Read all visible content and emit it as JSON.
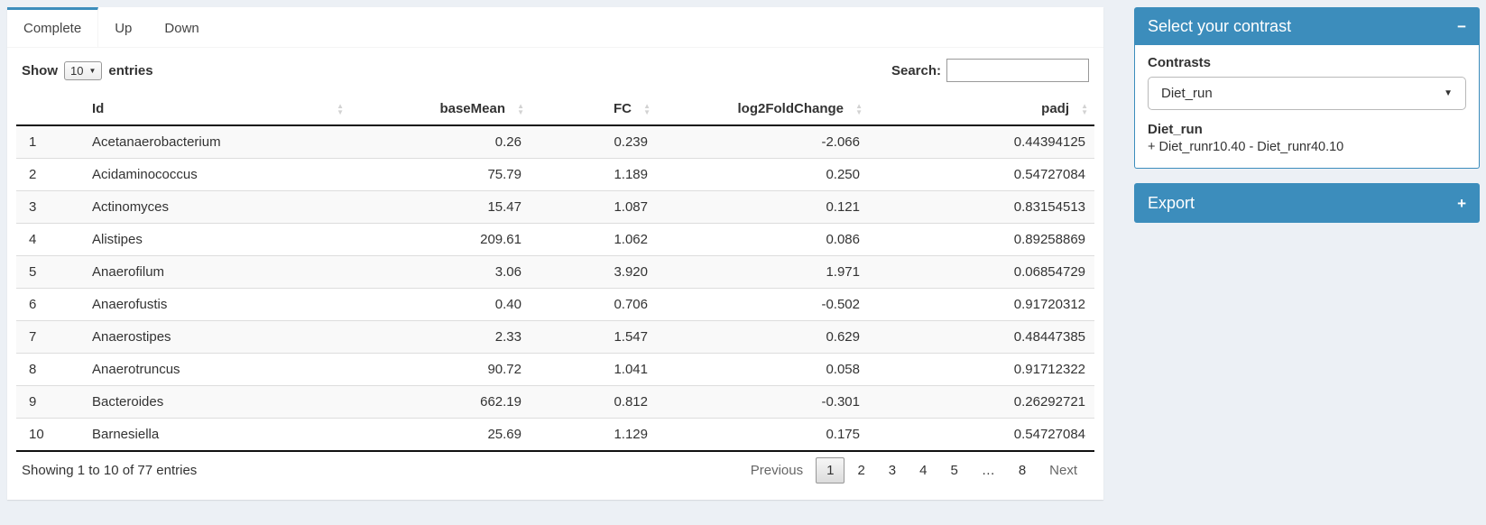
{
  "colors": {
    "accent": "#3c8dbc",
    "page_bg": "#ecf0f5",
    "stripe": "#f9f9f9"
  },
  "icons": {
    "sort_up": "▲",
    "sort_down": "▼",
    "select_caret": "▼",
    "collapse_minus": "−",
    "expand_plus": "+"
  },
  "tabs": [
    {
      "label": "Complete",
      "active": true
    },
    {
      "label": "Up",
      "active": false
    },
    {
      "label": "Down",
      "active": false
    }
  ],
  "controls": {
    "show_label": "Show",
    "page_length": "10",
    "entries_label": "entries",
    "search_label": "Search:",
    "search_value": ""
  },
  "table": {
    "columns": [
      "Id",
      "baseMean",
      "FC",
      "log2FoldChange",
      "padj"
    ],
    "rows": [
      {
        "index": "1",
        "id": "Acetanaerobacterium",
        "baseMean": "0.26",
        "fc": "0.239",
        "log2fc": "-2.066",
        "padj": "0.44394125"
      },
      {
        "index": "2",
        "id": "Acidaminococcus",
        "baseMean": "75.79",
        "fc": "1.189",
        "log2fc": "0.250",
        "padj": "0.54727084"
      },
      {
        "index": "3",
        "id": "Actinomyces",
        "baseMean": "15.47",
        "fc": "1.087",
        "log2fc": "0.121",
        "padj": "0.83154513"
      },
      {
        "index": "4",
        "id": "Alistipes",
        "baseMean": "209.61",
        "fc": "1.062",
        "log2fc": "0.086",
        "padj": "0.89258869"
      },
      {
        "index": "5",
        "id": "Anaerofilum",
        "baseMean": "3.06",
        "fc": "3.920",
        "log2fc": "1.971",
        "padj": "0.06854729"
      },
      {
        "index": "6",
        "id": "Anaerofustis",
        "baseMean": "0.40",
        "fc": "0.706",
        "log2fc": "-0.502",
        "padj": "0.91720312"
      },
      {
        "index": "7",
        "id": "Anaerostipes",
        "baseMean": "2.33",
        "fc": "1.547",
        "log2fc": "0.629",
        "padj": "0.48447385"
      },
      {
        "index": "8",
        "id": "Anaerotruncus",
        "baseMean": "90.72",
        "fc": "1.041",
        "log2fc": "0.058",
        "padj": "0.91712322"
      },
      {
        "index": "9",
        "id": "Bacteroides",
        "baseMean": "662.19",
        "fc": "0.812",
        "log2fc": "-0.301",
        "padj": "0.26292721"
      },
      {
        "index": "10",
        "id": "Barnesiella",
        "baseMean": "25.69",
        "fc": "1.129",
        "log2fc": "0.175",
        "padj": "0.54727084"
      }
    ],
    "info": "Showing 1 to 10 of 77 entries"
  },
  "pagination": {
    "previous_label": "Previous",
    "pages": [
      "1",
      "2",
      "3",
      "4",
      "5",
      "…",
      "8"
    ],
    "current": "1",
    "next_label": "Next"
  },
  "contrast_panel": {
    "title": "Select your contrast",
    "contrasts_label": "Contrasts",
    "selected_contrast": "Diet_run",
    "detail_title": "Diet_run",
    "detail_formula": "+ Diet_runr10.40 - Diet_runr40.10"
  },
  "export_panel": {
    "title": "Export"
  }
}
